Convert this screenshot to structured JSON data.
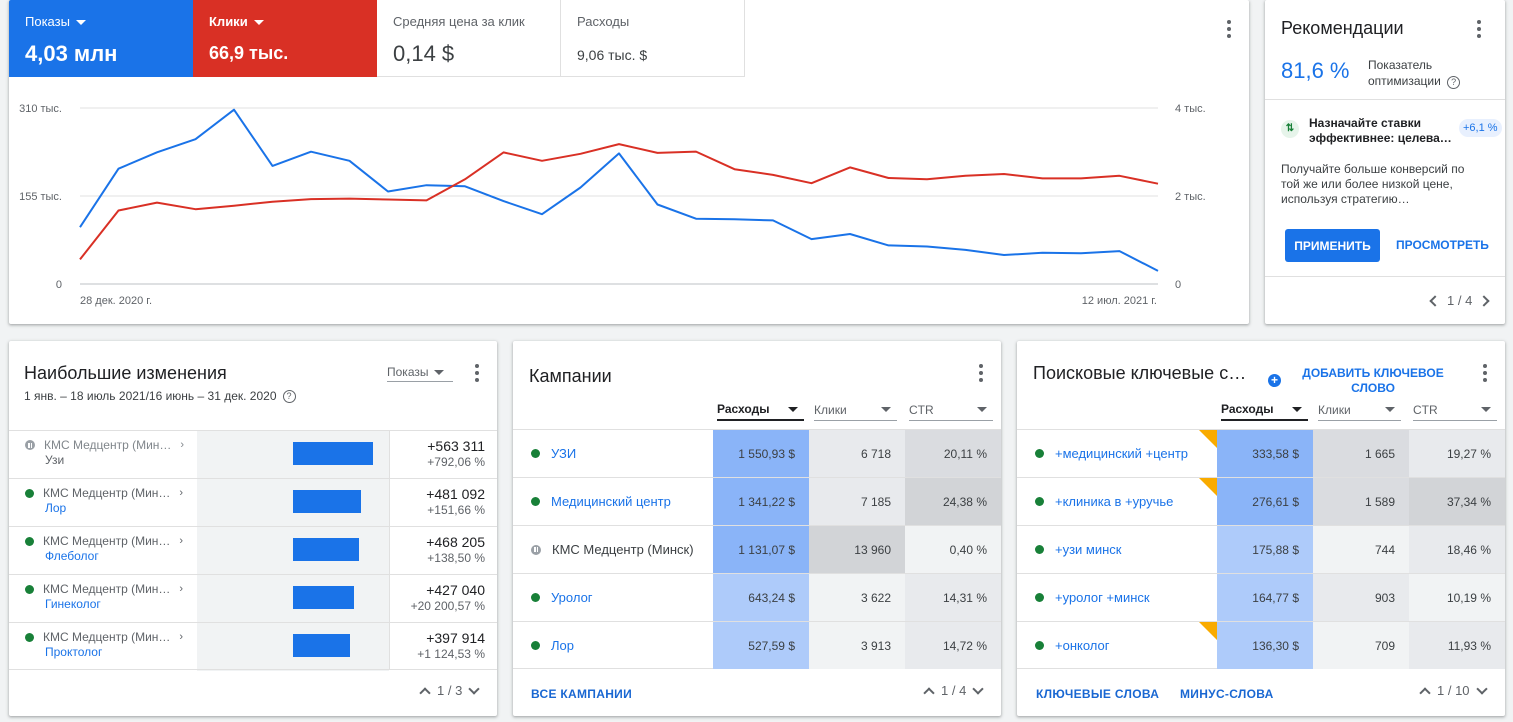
{
  "colors": {
    "blue": "#1a73e8",
    "red": "#d93025",
    "green": "#188038"
  },
  "metrics": [
    {
      "label": "Показы",
      "value": "4,03 млн"
    },
    {
      "label": "Клики",
      "value": "66,9 тыс."
    },
    {
      "label": "Средняя цена за клик",
      "value": "0,14 $"
    },
    {
      "label": "Расходы",
      "value": "9,06 тыс. $"
    }
  ],
  "chart_data": {
    "type": "line",
    "x_start": "28 дек. 2020 г.",
    "x_end": "12 июл. 2021 г.",
    "y_left_ticks": [
      "310 тыс.",
      "155 тыс.",
      "0"
    ],
    "y_right_ticks": [
      "4 тыс.",
      "2 тыс.",
      "0"
    ],
    "y_left_range": [
      0,
      310000
    ],
    "y_right_range": [
      0,
      4000
    ],
    "series": [
      {
        "axis": "left",
        "color": "#1a73e8",
        "values": [
          100000,
          203000,
          232000,
          255000,
          307000,
          208000,
          233000,
          217000,
          163000,
          174000,
          172000,
          146000,
          123000,
          170000,
          230000,
          140000,
          115000,
          114000,
          112000,
          79000,
          88000,
          68000,
          66000,
          60000,
          51000,
          55000,
          54000,
          58000,
          23000
        ]
      },
      {
        "axis": "right",
        "color": "#d93025",
        "values": [
          560,
          1670,
          1850,
          1700,
          1780,
          1870,
          1930,
          1940,
          1920,
          1900,
          2380,
          2990,
          2800,
          2960,
          3180,
          2980,
          3010,
          2610,
          2480,
          2290,
          2650,
          2410,
          2380,
          2460,
          2500,
          2400,
          2400,
          2460,
          2280
        ]
      }
    ]
  },
  "recommendations": {
    "title": "Рекомендации",
    "score": "81,6 %",
    "score_label_1": "Показатель",
    "score_label_2": "оптимизации",
    "item_title_1": "Назначайте ставки",
    "item_title_2": "эффективнее: целева…",
    "item_badge": "+6,1 %",
    "item_text_1": "Получайте больше конверсий по",
    "item_text_2": "той же или более низкой цене,",
    "item_text_3": "используя стратегию…",
    "apply": "ПРИМЕНИТЬ",
    "view": "ПРОСМОТРЕТЬ",
    "pager": "1 / 4"
  },
  "changes": {
    "title": "Наибольшие изменения",
    "subtitle": "1 янв. – 18 июль 2021/16 июнь – 31 дек. 2020",
    "dropdown": "Показы",
    "pager": "1 / 3",
    "bar_max": 563311,
    "rows": [
      {
        "parent": "КМС Медцентр (Мин…",
        "name": "Узи",
        "status": "paused",
        "value": "+563 311",
        "pct": "+792,06 %",
        "num": 563311
      },
      {
        "parent": "КМС Медцентр (Мин…",
        "name": "Лор",
        "status": "active",
        "value": "+481 092",
        "pct": "+151,66 %",
        "num": 481092
      },
      {
        "parent": "КМС Медцентр (Мин…",
        "name": "Флеболог",
        "status": "active",
        "value": "+468 205",
        "pct": "+138,50 %",
        "num": 468205
      },
      {
        "parent": "КМС Медцентр (Мин…",
        "name": "Гинеколог",
        "status": "active",
        "value": "+427 040",
        "pct": "+20 200,57 %",
        "num": 427040
      },
      {
        "parent": "КМС Медцентр (Мин…",
        "name": "Проктолог",
        "status": "active",
        "value": "+397 914",
        "pct": "+1 124,53 %",
        "num": 397914
      }
    ]
  },
  "campaigns": {
    "title": "Кампании",
    "columns": [
      "Расходы",
      "Клики",
      "CTR"
    ],
    "footer": "ВСЕ КАМПАНИИ",
    "pager": "1 / 4",
    "rows": [
      {
        "name": "УЗИ",
        "status": "active",
        "cost": "1 550,93 $",
        "clicks": "6 718",
        "ctr": "20,11 %",
        "c1": "#8ab4f8",
        "c2": "#e8eaed",
        "c3": "#dadce0"
      },
      {
        "name": "Медицинский центр",
        "status": "active",
        "cost": "1 341,22 $",
        "clicks": "7 185",
        "ctr": "24,38 %",
        "c1": "#8ab4f8",
        "c2": "#e8eaed",
        "c3": "#d2d4d7"
      },
      {
        "name": "КМС Медцентр (Минск)",
        "status": "paused",
        "cost": "1 131,07 $",
        "clicks": "13 960",
        "ctr": "0,40 %",
        "c1": "#8ab4f8",
        "c2": "#d2d4d7",
        "c3": "#f1f3f4"
      },
      {
        "name": "Уролог",
        "status": "active",
        "cost": "643,24 $",
        "clicks": "3 622",
        "ctr": "14,31 %",
        "c1": "#aecbfa",
        "c2": "#f1f3f4",
        "c3": "#e8eaed"
      },
      {
        "name": "Лор",
        "status": "active",
        "cost": "527,59 $",
        "clicks": "3 913",
        "ctr": "14,72 %",
        "c1": "#aecbfa",
        "c2": "#f1f3f4",
        "c3": "#e8eaed"
      }
    ]
  },
  "keywords": {
    "title": "Поисковые ключевые с…",
    "add_1": "ДОБАВИТЬ КЛЮЧЕВОЕ",
    "add_2": "СЛОВО",
    "columns": [
      "Расходы",
      "Клики",
      "CTR"
    ],
    "footer_1": "КЛЮЧЕВЫЕ СЛОВА",
    "footer_2": "МИНУС-СЛОВА",
    "pager": "1 / 10",
    "rows": [
      {
        "name": "+медицинский +центр",
        "cost": "333,58 $",
        "clicks": "1 665",
        "ctr": "19,27 %",
        "flag": true,
        "c1": "#8ab4f8",
        "c2": "#dadce0",
        "c3": "#e8eaed"
      },
      {
        "name": "+клиника в +уручье",
        "cost": "276,61 $",
        "clicks": "1 589",
        "ctr": "37,34 %",
        "flag": true,
        "c1": "#8ab4f8",
        "c2": "#dadce0",
        "c3": "#d2d4d7"
      },
      {
        "name": "+узи минск",
        "cost": "175,88 $",
        "clicks": "744",
        "ctr": "18,46 %",
        "flag": false,
        "c1": "#aecbfa",
        "c2": "#f1f3f4",
        "c3": "#e8eaed"
      },
      {
        "name": "+уролог +минск",
        "cost": "164,77 $",
        "clicks": "903",
        "ctr": "10,19 %",
        "flag": false,
        "c1": "#aecbfa",
        "c2": "#e8eaed",
        "c3": "#f1f3f4"
      },
      {
        "name": "+онколог",
        "cost": "136,30 $",
        "clicks": "709",
        "ctr": "11,93 %",
        "flag": true,
        "c1": "#aecbfa",
        "c2": "#f1f3f4",
        "c3": "#e8eaed"
      }
    ]
  }
}
